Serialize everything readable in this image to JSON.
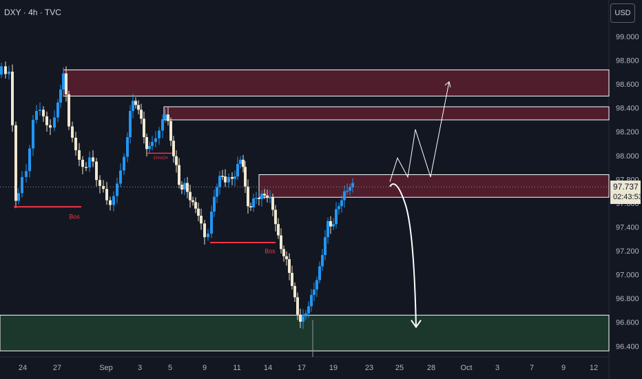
{
  "header": {
    "title": "DXY · 4h · TVC",
    "currency": "USD"
  },
  "last_price": {
    "value": "97.737",
    "countdown": "02:43:53"
  },
  "colors": {
    "background": "#131722",
    "candle_up": "#2196f3",
    "candle_down": "#efe7d0",
    "zone_supply": "#5b1f2d",
    "zone_demand": "#1f3d2e",
    "bos_line": "#f23645",
    "projection": "#ffffff"
  },
  "chart_data": {
    "type": "candlestick",
    "symbol": "DXY",
    "timeframe": "4h",
    "ylim": [
      96.3,
      99.16
    ],
    "y_ticks": [
      "99.000",
      "98.800",
      "98.600",
      "98.400",
      "98.200",
      "98.000",
      "97.800",
      "97.600",
      "97.400",
      "97.200",
      "97.000",
      "96.800",
      "96.600",
      "96.400"
    ],
    "x_ticks": [
      "24",
      "27",
      "Sep",
      "3",
      "5",
      "9",
      "11",
      "14",
      "17",
      "19",
      "23",
      "25",
      "28",
      "Oct",
      "3",
      "7",
      "9",
      "12"
    ],
    "price_path": [
      [
        0,
        98.68
      ],
      [
        6,
        98.78
      ],
      [
        11,
        98.62
      ],
      [
        16,
        98.82
      ],
      [
        21,
        97.65
      ],
      [
        25,
        97.62
      ],
      [
        30,
        97.78
      ],
      [
        36,
        97.82
      ],
      [
        41,
        97.95
      ],
      [
        46,
        98.2
      ],
      [
        51,
        98.36
      ],
      [
        56,
        98.42
      ],
      [
        61,
        98.38
      ],
      [
        66,
        98.24
      ],
      [
        71,
        98.3
      ],
      [
        77,
        98.2
      ],
      [
        82,
        98.4
      ],
      [
        86,
        98.52
      ],
      [
        90,
        98.62
      ],
      [
        94,
        98.72
      ],
      [
        98,
        98.34
      ],
      [
        103,
        98.18
      ],
      [
        108,
        98.08
      ],
      [
        113,
        98.04
      ],
      [
        118,
        97.92
      ],
      [
        123,
        97.85
      ],
      [
        128,
        97.98
      ],
      [
        133,
        98.02
      ],
      [
        138,
        97.84
      ],
      [
        143,
        97.78
      ],
      [
        148,
        97.74
      ],
      [
        153,
        97.66
      ],
      [
        158,
        97.62
      ],
      [
        163,
        97.58
      ],
      [
        168,
        97.7
      ],
      [
        173,
        97.86
      ],
      [
        178,
        97.92
      ],
      [
        183,
        98.02
      ],
      [
        187,
        98.32
      ],
      [
        191,
        98.46
      ],
      [
        195,
        98.42
      ],
      [
        199,
        98.46
      ],
      [
        203,
        98.34
      ],
      [
        207,
        98.24
      ],
      [
        211,
        98.1
      ],
      [
        215,
        98.04
      ],
      [
        219,
        98.08
      ],
      [
        224,
        98.18
      ],
      [
        229,
        98.14
      ],
      [
        234,
        98.24
      ],
      [
        238,
        98.4
      ],
      [
        242,
        98.32
      ],
      [
        246,
        98.22
      ],
      [
        250,
        98.06
      ],
      [
        254,
        97.96
      ],
      [
        258,
        97.84
      ],
      [
        262,
        97.7
      ],
      [
        266,
        97.76
      ],
      [
        270,
        97.74
      ],
      [
        274,
        97.68
      ],
      [
        278,
        97.6
      ],
      [
        282,
        97.58
      ],
      [
        286,
        97.56
      ],
      [
        290,
        97.46
      ],
      [
        295,
        97.36
      ],
      [
        300,
        97.3
      ],
      [
        305,
        97.42
      ],
      [
        309,
        97.6
      ],
      [
        313,
        97.74
      ],
      [
        317,
        97.76
      ],
      [
        321,
        97.86
      ],
      [
        325,
        97.82
      ],
      [
        330,
        97.76
      ],
      [
        335,
        97.84
      ],
      [
        339,
        97.8
      ],
      [
        343,
        97.88
      ],
      [
        347,
        97.94
      ],
      [
        351,
        98.02
      ],
      [
        354,
        97.82
      ],
      [
        358,
        97.62
      ],
      [
        362,
        97.56
      ],
      [
        366,
        97.6
      ],
      [
        370,
        97.64
      ],
      [
        374,
        97.68
      ],
      [
        378,
        97.62
      ],
      [
        382,
        97.7
      ],
      [
        386,
        97.66
      ],
      [
        390,
        97.66
      ],
      [
        394,
        97.6
      ],
      [
        398,
        97.52
      ],
      [
        402,
        97.36
      ],
      [
        406,
        97.26
      ],
      [
        410,
        97.2
      ],
      [
        414,
        97.14
      ],
      [
        418,
        97.08
      ],
      [
        422,
        96.98
      ],
      [
        426,
        96.86
      ],
      [
        430,
        96.72
      ],
      [
        434,
        96.64
      ],
      [
        438,
        96.6
      ],
      [
        442,
        96.66
      ],
      [
        446,
        96.72
      ],
      [
        450,
        96.78
      ],
      [
        454,
        96.84
      ],
      [
        458,
        96.94
      ],
      [
        462,
        97.0
      ],
      [
        466,
        97.1
      ],
      [
        470,
        97.26
      ],
      [
        474,
        97.4
      ],
      [
        478,
        97.46
      ],
      [
        482,
        97.38
      ],
      [
        486,
        97.5
      ],
      [
        490,
        97.56
      ],
      [
        494,
        97.62
      ],
      [
        498,
        97.66
      ],
      [
        502,
        97.7
      ],
      [
        506,
        97.74
      ],
      [
        510,
        97.76
      ],
      [
        514,
        97.74
      ]
    ],
    "zones": [
      {
        "name": "supply-zone-upper",
        "x0": 92,
        "x1": 884,
        "y_top": 98.72,
        "y_bottom": 98.5
      },
      {
        "name": "supply-zone-middle",
        "x0": 238,
        "x1": 884,
        "y_top": 98.41,
        "y_bottom": 98.3
      },
      {
        "name": "supply-zone-lower",
        "x0": 376,
        "x1": 884,
        "y_top": 97.84,
        "y_bottom": 97.65
      },
      {
        "name": "demand-zone",
        "x0": 0,
        "x1": 884,
        "y_top": 96.66,
        "y_bottom": 96.36
      }
    ],
    "annotations": [
      {
        "name": "bos-label-1",
        "text": "Bos",
        "x": 108,
        "y": 97.47,
        "line_x0": 20,
        "line_x1": 118,
        "line_y": 97.57
      },
      {
        "name": "choch-label",
        "text": "CHoCH",
        "x": 233,
        "y": 97.97,
        "line_x0": 214,
        "line_x1": 250,
        "line_y": 98.02
      },
      {
        "name": "bos-label-2",
        "text": "Bos",
        "x": 392,
        "y": 97.18,
        "line_x0": 305,
        "line_x1": 400,
        "line_y": 97.27
      }
    ],
    "projections": [
      {
        "name": "bullish-path",
        "points": [
          [
            566,
            97.78
          ],
          [
            577,
            97.98
          ],
          [
            592,
            97.82
          ],
          [
            603,
            98.22
          ],
          [
            625,
            97.82
          ],
          [
            652,
            98.62
          ]
        ]
      },
      {
        "name": "bearish-path",
        "points": [
          [
            566,
            97.74
          ],
          [
            575,
            97.76
          ],
          [
            588,
            97.6
          ],
          [
            600,
            97.0
          ],
          [
            604,
            96.56
          ]
        ]
      }
    ]
  }
}
